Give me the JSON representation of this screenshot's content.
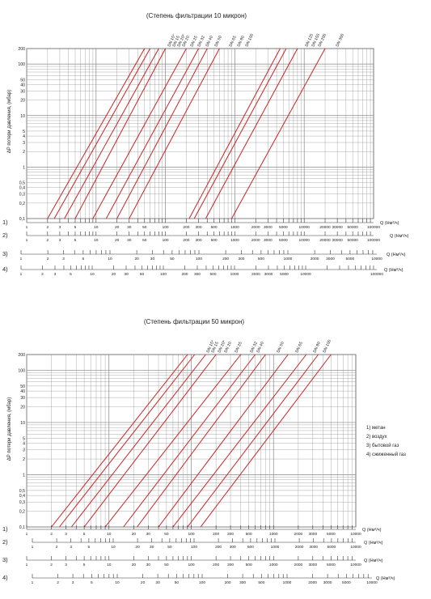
{
  "charts": [
    {
      "title": "(Степень фильтрации 10 микрон)",
      "ylabel": "ΔP потери давления, (мбар)",
      "y_ticks": [
        "200",
        "100",
        "50",
        "40",
        "30",
        "20",
        "10",
        "5",
        "4",
        "3",
        "2",
        "1",
        "0,5",
        "0,4",
        "0,3",
        "0,2",
        "0,1"
      ],
      "series_labels": [
        "DN 15*",
        "DN 15",
        "DN 20*",
        "DN 20",
        "DN 25",
        "DN 32",
        "DN 40",
        "DN 50",
        "DN 65",
        "DN 80",
        "DN 100",
        "DN 125",
        "DN 150",
        "DN 200",
        "DN 300"
      ],
      "scales": [
        {
          "num": "1)",
          "unit": "Q (Нм³/ч)",
          "ticks": [
            "1",
            "2",
            "3",
            "5",
            "10",
            "20",
            "30",
            "50",
            "100",
            "200",
            "300",
            "500",
            "1000",
            "2000",
            "3000",
            "5000",
            "10000",
            "20000",
            "30000",
            "50000",
            "100000"
          ]
        },
        {
          "num": "2)",
          "unit": "Q (Нм³/ч)",
          "ticks": [
            "1",
            "2",
            "3",
            "5",
            "10",
            "20",
            "30",
            "50",
            "100",
            "200",
            "300",
            "500",
            "1000",
            "2000",
            "3000",
            "5000",
            "10000",
            "20000",
            "30000",
            "50000",
            "100000"
          ]
        },
        {
          "num": "3)",
          "unit": "Q (Нм³/ч)",
          "ticks": [
            "1",
            "2",
            "3",
            "5",
            "10",
            "20",
            "30",
            "50",
            "100",
            "200",
            "300",
            "500",
            "1000",
            "2000",
            "3000",
            "5000",
            "10000"
          ]
        },
        {
          "num": "4)",
          "unit": "Q (Нм³/ч)",
          "ticks": [
            "1",
            "2",
            "3",
            "5",
            "10",
            "20",
            "30",
            "50",
            "100",
            "200",
            "300",
            "500",
            "1000",
            "2000",
            "3000",
            "5000",
            "10000",
            "100000"
          ]
        }
      ]
    },
    {
      "title": "(Степень фильтрации 50 микрон)",
      "ylabel": "ΔP потери давления, (мбар)",
      "y_ticks": [
        "200",
        "100",
        "50",
        "40",
        "30",
        "20",
        "10",
        "5",
        "4",
        "3",
        "2",
        "1",
        "0,5",
        "0,4",
        "0,3",
        "0,2",
        "0,1"
      ],
      "series_labels": [
        "DN 15*",
        "DN 15",
        "DN 20*",
        "DN 20",
        "DN 25",
        "DN 32",
        "DN 40",
        "DN 50",
        "DN 65",
        "DN 80",
        "DN 100"
      ],
      "scales": [
        {
          "num": "1)",
          "unit": "Q (Нм³/ч)",
          "ticks": [
            "1",
            "2",
            "3",
            "5",
            "10",
            "20",
            "30",
            "50",
            "100",
            "200",
            "300",
            "500",
            "1000",
            "2000",
            "3000",
            "5000",
            "10000"
          ]
        },
        {
          "num": "2)",
          "unit": "Q (Нм³/ч)",
          "ticks": [
            "1",
            "2",
            "3",
            "5",
            "10",
            "20",
            "30",
            "50",
            "100",
            "200",
            "300",
            "500",
            "1000",
            "2000",
            "3000",
            "5000",
            "10000"
          ]
        },
        {
          "num": "3)",
          "unit": "Q (Нм³/ч)",
          "ticks": [
            "1",
            "2",
            "3",
            "5",
            "10",
            "20",
            "30",
            "50",
            "100",
            "200",
            "300",
            "500",
            "1000",
            "2000",
            "3000",
            "5000",
            "10000"
          ]
        },
        {
          "num": "4)",
          "unit": "Q (Нм³/ч)",
          "ticks": [
            "1",
            "2",
            "3",
            "5",
            "10",
            "20",
            "30",
            "50",
            "100",
            "200",
            "300",
            "500",
            "1000",
            "2000",
            "3000",
            "5000",
            "10000"
          ]
        }
      ]
    }
  ],
  "legend": [
    "1) метан",
    "2) воздух",
    "3) бытовой газ",
    "4) сжиженный газ"
  ],
  "colors": {
    "line": "#cc2222",
    "grid": "#888888",
    "text": "#222222"
  },
  "chart_data": [
    {
      "type": "line",
      "title": "(Степень фильтрации 10 микрон)",
      "ylabel": "ΔP потери давления, (мбар)",
      "xlabel": "Q (Нм³/ч)",
      "x_scale": "log",
      "y_scale": "log",
      "xlim": [
        1,
        100000
      ],
      "ylim": [
        0.1,
        200
      ],
      "series": [
        {
          "name": "DN 15*",
          "x": [
            2,
            50
          ],
          "y": [
            0.1,
            200
          ]
        },
        {
          "name": "DN 15",
          "x": [
            2.5,
            60
          ],
          "y": [
            0.1,
            200
          ]
        },
        {
          "name": "DN 20*",
          "x": [
            3.5,
            80
          ],
          "y": [
            0.1,
            200
          ]
        },
        {
          "name": "DN 20",
          "x": [
            5,
            100
          ],
          "y": [
            0.1,
            200
          ]
        },
        {
          "name": "DN 25",
          "x": [
            9,
            200
          ],
          "y": [
            0.1,
            200
          ]
        },
        {
          "name": "DN 32",
          "x": [
            14,
            300
          ],
          "y": [
            0.1,
            200
          ]
        },
        {
          "name": "DN 40",
          "x": [
            20,
            400
          ],
          "y": [
            0.1,
            200
          ]
        },
        {
          "name": "DN 50",
          "x": [
            30,
            600
          ],
          "y": [
            0.1,
            200
          ]
        },
        {
          "name": "DN 65",
          "x": [
            220,
            4500
          ],
          "y": [
            0.1,
            200
          ]
        },
        {
          "name": "DN 80",
          "x": [
            260,
            5500
          ],
          "y": [
            0.1,
            200
          ]
        },
        {
          "name": "DN 100",
          "x": [
            380,
            8000
          ],
          "y": [
            0.1,
            200
          ]
        },
        {
          "name": "DN 150",
          "x": [
            900,
            20000
          ],
          "y": [
            0.1,
            200
          ]
        }
      ]
    },
    {
      "type": "line",
      "title": "(Степень фильтрации 50 микрон)",
      "ylabel": "ΔP потери давления, (мбар)",
      "xlabel": "Q (Нм³/ч)",
      "x_scale": "log",
      "y_scale": "log",
      "xlim": [
        1,
        10000
      ],
      "ylim": [
        0.1,
        200
      ],
      "series": [
        {
          "name": "DN 15*",
          "x": [
            2,
            90
          ],
          "y": [
            0.1,
            200
          ]
        },
        {
          "name": "DN 15",
          "x": [
            2.5,
            110
          ],
          "y": [
            0.1,
            200
          ]
        },
        {
          "name": "DN 20*",
          "x": [
            3.5,
            150
          ],
          "y": [
            0.1,
            200
          ]
        },
        {
          "name": "DN 20",
          "x": [
            5,
            200
          ],
          "y": [
            0.1,
            200
          ]
        },
        {
          "name": "DN 25",
          "x": [
            9,
            400
          ],
          "y": [
            0.1,
            200
          ]
        },
        {
          "name": "DN 32",
          "x": [
            15,
            600
          ],
          "y": [
            0.1,
            200
          ]
        },
        {
          "name": "DN 40",
          "x": [
            22,
            800
          ],
          "y": [
            0.1,
            200
          ]
        },
        {
          "name": "DN 50",
          "x": [
            40,
            1500
          ],
          "y": [
            0.1,
            200
          ]
        },
        {
          "name": "DN 65",
          "x": [
            60,
            2500
          ],
          "y": [
            0.1,
            200
          ]
        },
        {
          "name": "DN 80",
          "x": [
            90,
            3500
          ],
          "y": [
            0.1,
            200
          ]
        },
        {
          "name": "DN 100",
          "x": [
            130,
            5000
          ],
          "y": [
            0.1,
            200
          ]
        }
      ]
    }
  ]
}
